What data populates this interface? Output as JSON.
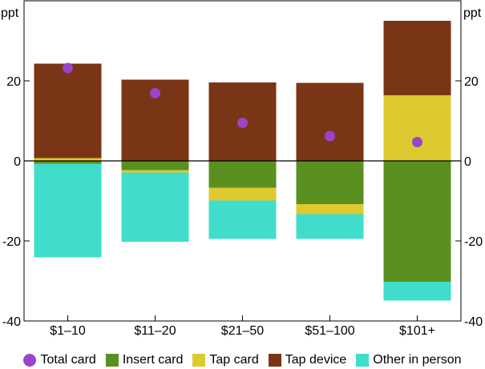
{
  "chart_data": {
    "type": "bar",
    "stacked": true,
    "unit_left": "ppt",
    "unit_right": "ppt",
    "ylim": [
      -40,
      40
    ],
    "yticks": [
      -40,
      -20,
      0,
      20
    ],
    "categories": [
      "$1–10",
      "$11–20",
      "$21–50",
      "$51–100",
      "$101+"
    ],
    "series": [
      {
        "name": "Insert card",
        "color": "#5a9020",
        "values": [
          -0.7,
          -2.3,
          -6.7,
          -10.8,
          -30.2
        ]
      },
      {
        "name": "Tap card",
        "color": "#dfc930",
        "values": [
          0.7,
          -0.6,
          -3.2,
          -2.5,
          16.4
        ]
      },
      {
        "name": "Tap device",
        "color": "#7a3516",
        "values": [
          23.6,
          20.3,
          19.6,
          19.5,
          18.6
        ]
      },
      {
        "name": "Other in person",
        "color": "#40ddcc",
        "values": [
          -23.4,
          -17.3,
          -9.6,
          -6.2,
          -4.7
        ]
      }
    ],
    "total": {
      "name": "Total card",
      "color": "#9a45c8",
      "values": [
        23.2,
        16.9,
        9.5,
        6.2,
        4.7
      ]
    }
  }
}
